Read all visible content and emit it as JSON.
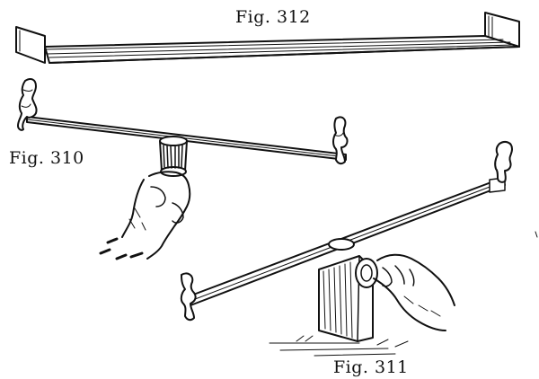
{
  "figures": {
    "fig312": {
      "caption": "Fig. 312"
    },
    "fig310": {
      "caption": "Fig. 310"
    },
    "fig311": {
      "caption": "Fig. 311"
    }
  },
  "colors": {
    "ink": "#111111",
    "paper": "#ffffff"
  }
}
